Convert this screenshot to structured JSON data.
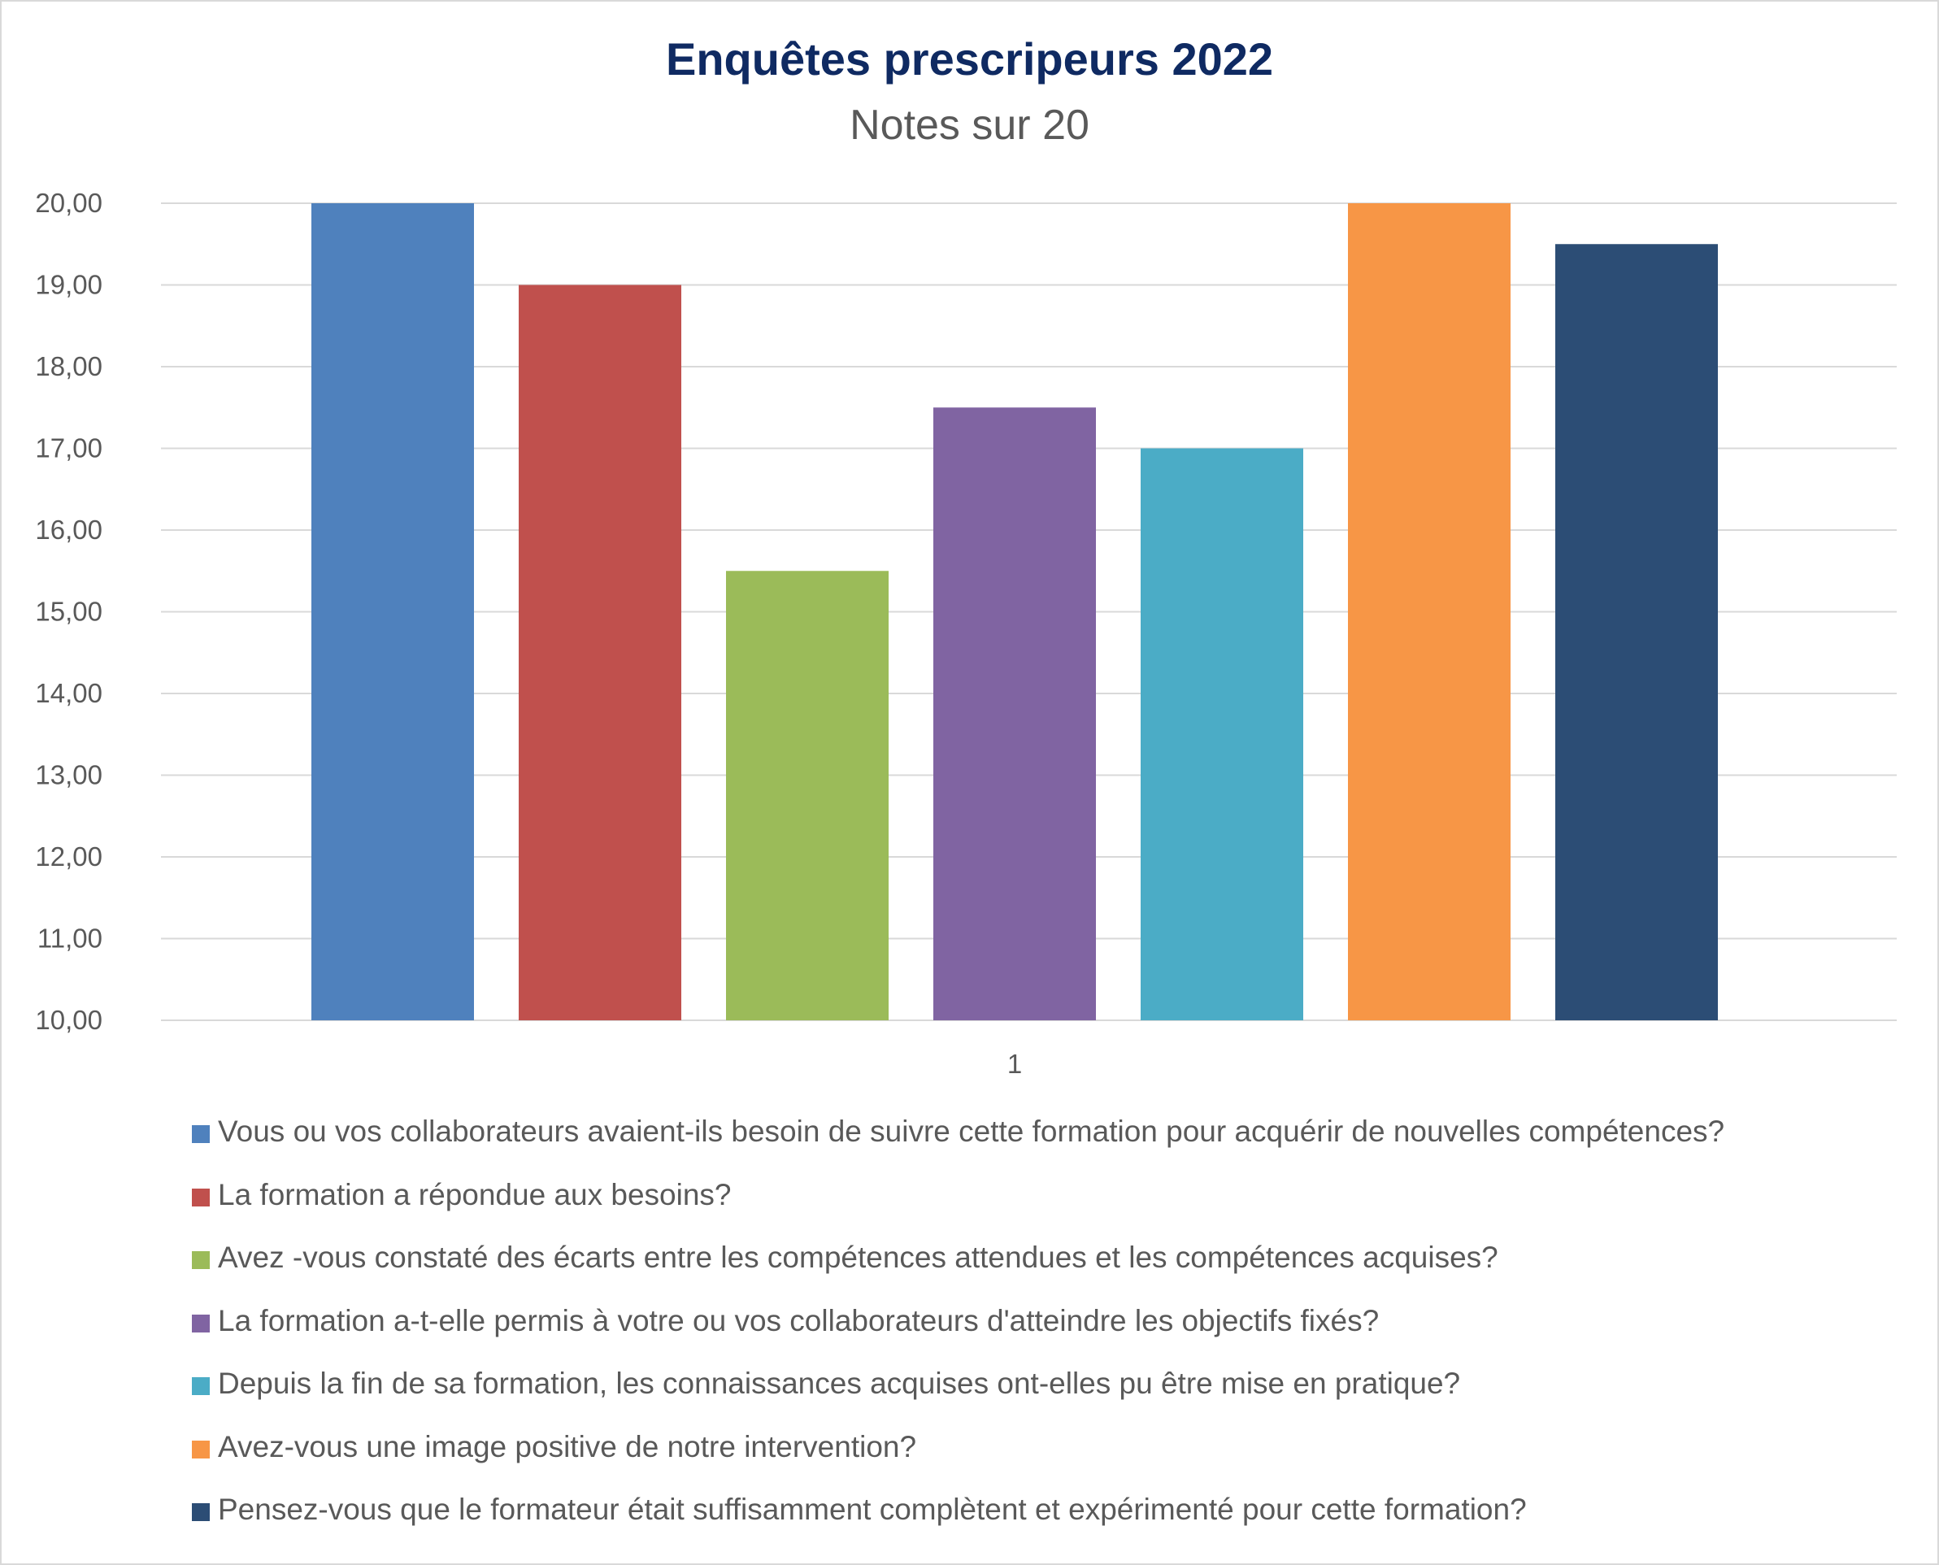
{
  "chart_data": {
    "type": "bar",
    "title": "Enquêtes prescripeurs 2022",
    "subtitle": "Notes sur 20",
    "categories": [
      "1"
    ],
    "ylim": [
      10,
      20
    ],
    "yticks": [
      "10,00",
      "11,00",
      "12,00",
      "13,00",
      "14,00",
      "15,00",
      "16,00",
      "17,00",
      "18,00",
      "19,00",
      "20,00"
    ],
    "grid": true,
    "legend_position": "bottom",
    "series": [
      {
        "name": "Vous ou vos collaborateurs avaient-ils besoin de suivre cette formation pour acquérir de nouvelles compétences?",
        "values": [
          20.0
        ],
        "color": "#4f81bd"
      },
      {
        "name": "La formation a répondue aux besoins?",
        "values": [
          19.0
        ],
        "color": "#c0504d"
      },
      {
        "name": "Avez -vous constaté des écarts entre les compétences attendues et les compétences acquises?",
        "values": [
          15.5
        ],
        "color": "#9bbb59"
      },
      {
        "name": "La formation a-t-elle permis à votre ou vos collaborateurs d'atteindre les objectifs fixés?",
        "values": [
          17.5
        ],
        "color": "#8064a2"
      },
      {
        "name": "Depuis la fin de sa formation, les connaissances acquises ont-elles pu être mise en pratique?",
        "values": [
          17.0
        ],
        "color": "#4bacc6"
      },
      {
        "name": "Avez-vous une image positive de notre intervention?",
        "values": [
          20.0
        ],
        "color": "#f79646"
      },
      {
        "name": "Pensez-vous que le formateur était suffisamment complètent et expérimenté pour cette formation?",
        "values": [
          19.5
        ],
        "color": "#2c4d75"
      }
    ]
  }
}
